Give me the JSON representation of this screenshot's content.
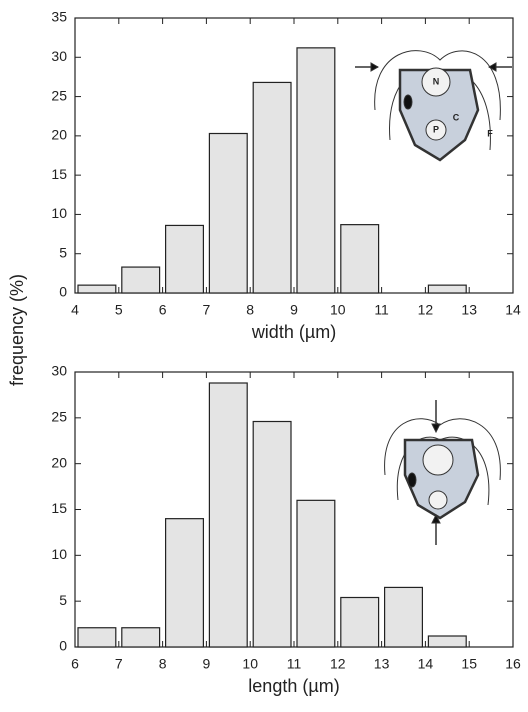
{
  "chart_data": [
    {
      "type": "histogram",
      "xlabel": "width (µm)",
      "ylabel": "frequency (%)",
      "bins": [
        4,
        5,
        6,
        7,
        8,
        9,
        10,
        11,
        12,
        13
      ],
      "values": [
        1,
        3.3,
        8.6,
        20.3,
        26.8,
        31.2,
        8.7,
        0,
        1
      ],
      "color": "#e4e4e4",
      "xlim": [
        4,
        14
      ],
      "xticks": [
        4,
        5,
        6,
        7,
        8,
        9,
        10,
        11,
        12,
        13,
        14
      ],
      "ylim": [
        0,
        35
      ],
      "yticks": [
        0,
        5,
        10,
        15,
        20,
        25,
        30,
        35
      ],
      "annotations": [
        "N",
        "C",
        "P",
        "F"
      ]
    },
    {
      "type": "histogram",
      "xlabel": "length (µm)",
      "bins": [
        6,
        7,
        8,
        9,
        10,
        11,
        12,
        13,
        14,
        15
      ],
      "values": [
        2.1,
        2.1,
        14,
        28.8,
        24.6,
        16,
        5.4,
        6.5,
        1.2
      ],
      "color": "#e4e4e4",
      "xlim": [
        6,
        16
      ],
      "xticks": [
        6,
        7,
        8,
        9,
        10,
        11,
        12,
        13,
        14,
        15,
        16
      ],
      "ylim": [
        0,
        30
      ],
      "yticks": [
        0,
        5,
        10,
        15,
        20,
        25,
        30
      ]
    }
  ]
}
